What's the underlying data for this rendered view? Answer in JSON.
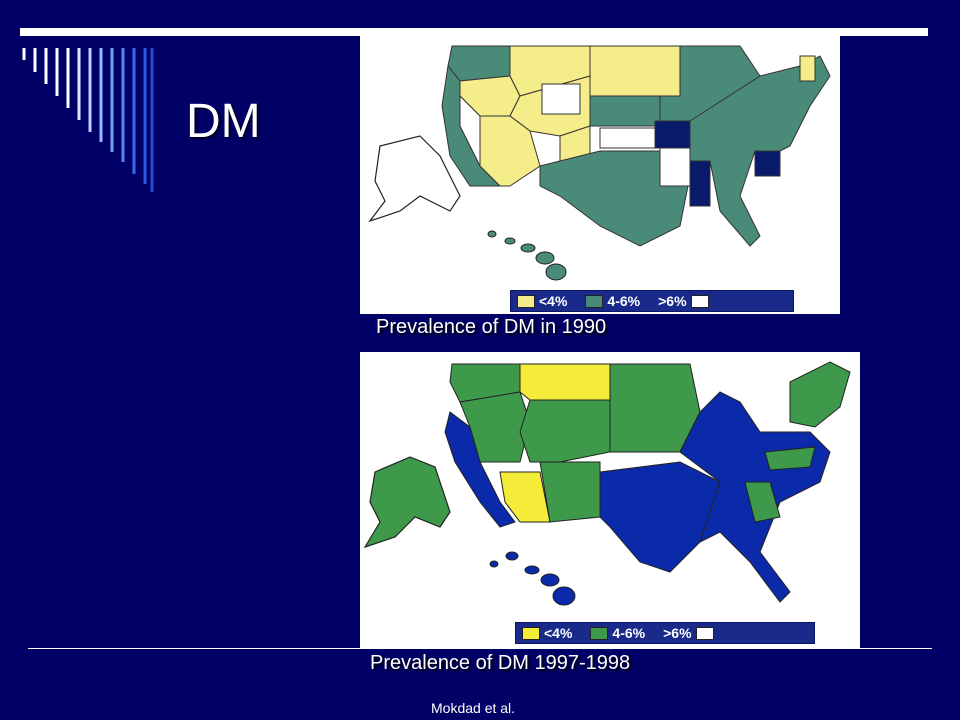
{
  "slide": {
    "title": "DM",
    "credit": "Mokdad et al."
  },
  "maps": [
    {
      "caption": "Prevalence of DM in 1990",
      "legend": [
        {
          "label": "<4%",
          "color": "#f5ec8a"
        },
        {
          "label": "4-6%",
          "color": "#4a8a78"
        },
        {
          "label": ">6%",
          "color": "#ffffff"
        }
      ],
      "low_color": "#f5ec8a",
      "mid_color": "#4a8a78",
      "high_color": "#0a1a6a"
    },
    {
      "caption": "Prevalence of DM 1997-1998",
      "legend": [
        {
          "label": "<4%",
          "color": "#f5ec3a"
        },
        {
          "label": "4-6%",
          "color": "#3e9a4a"
        },
        {
          "label": ">6%",
          "color": "#ffffff"
        }
      ],
      "low_color": "#f5ec3a",
      "mid_color": "#3e9a4a",
      "high_color": "#0a2aaa"
    }
  ]
}
